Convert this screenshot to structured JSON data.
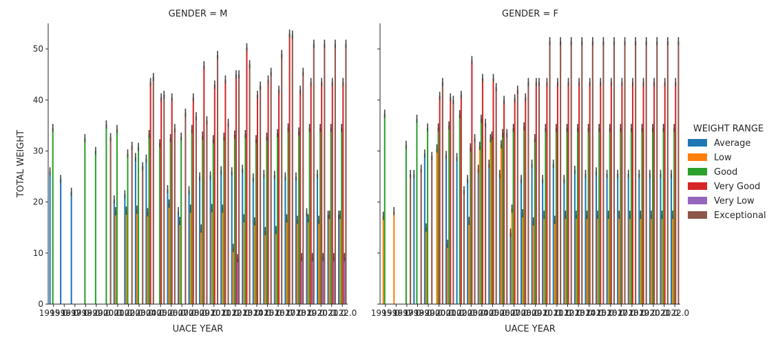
{
  "chart_data": {
    "type": "bar",
    "ylabel": "TOTAL WEIGHT",
    "xlabel": "UACE YEAR",
    "ylim": [
      0,
      55
    ],
    "yticks": [
      0,
      10,
      20,
      30,
      40,
      50
    ],
    "legend": {
      "title": "WEIGHT RANGE",
      "placement": "right",
      "entries": [
        {
          "name": "Average",
          "color": "#1f77b4"
        },
        {
          "name": "Low",
          "color": "#ff7f0e"
        },
        {
          "name": "Good",
          "color": "#2ca02c"
        },
        {
          "name": "Very Good",
          "color": "#d62728"
        },
        {
          "name": "Very Low",
          "color": "#9467bd"
        },
        {
          "name": "Exceptional",
          "color": "#8c564b"
        }
      ]
    },
    "categories": [
      "1995.0",
      "1996.0",
      "1997.0",
      "1998.0",
      "1999.0",
      "2000.0",
      "2001.0",
      "2002.0",
      "2003.0",
      "2004.0",
      "2005.0",
      "2006.0",
      "2007.0",
      "2008.0",
      "2009.0",
      "2010.0",
      "2011.0",
      "2012.0",
      "2013.0",
      "2014.0",
      "2015.0",
      "2016.0",
      "2017.0",
      "2018.0",
      "2019.0",
      "2020.0",
      "2021.0",
      "2022.0"
    ],
    "panels": [
      {
        "title": "GENDER = M",
        "series": [
          {
            "name": "Average",
            "values": [
              26,
              24.5,
              22,
              null,
              null,
              null,
              20.5,
              21.5,
              28.8,
              28.5,
              null,
              22.5,
              18.2,
              22.3,
              25,
              25.2,
              26.2,
              26,
              26.5,
              24.8,
              25.5,
              25.3,
              25,
              25,
              18,
              25.5,
              17.5,
              17.5
            ]
          },
          {
            "name": "Low",
            "values": [
              null,
              null,
              null,
              null,
              null,
              null,
              18.2,
              18.3,
              18.5,
              18,
              null,
              19.7,
              16.3,
              18.7,
              14.8,
              18.8,
              18.7,
              11,
              16.8,
              16.2,
              14.3,
              14.5,
              16.8,
              16.5,
              16.8,
              16.5,
              17.5,
              17.5
            ]
          },
          {
            "name": "Good",
            "values": [
              34.5,
              null,
              null,
              32.5,
              30,
              35.2,
              34.3,
              29.5,
              30.8,
              33.3,
              31.5,
              32.5,
              32.8,
              34.3,
              33,
              32.3,
              32.8,
              33.2,
              33.3,
              32.3,
              32.8,
              33.5,
              34.6,
              33.8,
              34.5,
              34.5,
              34.5,
              34.5
            ]
          },
          {
            "name": "Very Good",
            "values": [
              null,
              null,
              null,
              null,
              null,
              null,
              null,
              null,
              null,
              43.5,
              40.5,
              40.5,
              null,
              40.5,
              46.8,
              43,
              44,
              45,
              50.3,
              41,
              44,
              42,
              53,
              42,
              43.5,
              43.5,
              43.5,
              43.5
            ]
          },
          {
            "name": "Very Low",
            "values": [
              null,
              null,
              null,
              null,
              null,
              null,
              null,
              null,
              null,
              null,
              null,
              null,
              null,
              null,
              null,
              null,
              null,
              9,
              null,
              null,
              null,
              null,
              null,
              9.2,
              9.2,
              9.2,
              9.2,
              9.2
            ]
          },
          {
            "name": "Exceptional",
            "values": [
              null,
              null,
              null,
              null,
              null,
              32.7,
              null,
              31,
              27,
              44.5,
              41,
              34.5,
              37.5,
              36.8,
              36,
              48.8,
              35.5,
              45,
              47,
              42.8,
              45.5,
              49,
              52.8,
              45.5,
              51,
              51,
              51,
              51
            ]
          }
        ]
      },
      {
        "title": "GENDER = F",
        "series": [
          {
            "name": "Average",
            "values": [
              null,
              null,
              null,
              25.5,
              29.5,
              null,
              29.2,
              28.8,
              24.5,
              26.5,
              27.5,
              25.5,
              14,
              24.5,
              27.5,
              24.5,
              27.5,
              24.5,
              26.3,
              25.5,
              26,
              25.5,
              25.5,
              25.5,
              25.5,
              25.5,
              25.5,
              25.5
            ]
          },
          {
            "name": "Low",
            "values": [
              17.3,
              18.2,
              null,
              null,
              15,
              30.5,
              11.8,
              null,
              16.3,
              31,
              32.5,
              31.3,
              18.7,
              17.8,
              16.2,
              17.5,
              16.5,
              17.5,
              17.5,
              17.5,
              17.5,
              17.5,
              17.5,
              17.5,
              17.5,
              17.5,
              17.5,
              17.5
            ]
          },
          {
            "name": "Good",
            "values": [
              37.3,
              null,
              31.2,
              36.3,
              34.6,
              34.6,
              35,
              37.2,
              30.7,
              36.3,
              33,
              33.5,
              34.5,
              34.8,
              32.5,
              34.5,
              34.5,
              34.5,
              34.5,
              34.5,
              34.5,
              34.5,
              34.5,
              34.5,
              34.5,
              34.5,
              34.5,
              34.5
            ]
          },
          {
            "name": "Very Good",
            "values": [
              null,
              null,
              null,
              null,
              null,
              40.8,
              40.5,
              41,
              47.8,
              44.3,
              44.3,
              40,
              40.3,
              40.5,
              43.5,
              43.5,
              43.5,
              43.5,
              43.5,
              43.5,
              43.5,
              43.5,
              43.5,
              43.5,
              43.5,
              43.5,
              43.5,
              43.5
            ]
          },
          {
            "name": "Very Low",
            "values": [
              null,
              null,
              null,
              null,
              null,
              null,
              null,
              null,
              null,
              null,
              null,
              null,
              null,
              null,
              null,
              null,
              null,
              null,
              null,
              null,
              null,
              null,
              null,
              null,
              null,
              null,
              null,
              null
            ]
          },
          {
            "name": "Exceptional",
            "values": [
              null,
              null,
              25.5,
              26.5,
              29,
              43.5,
              40,
              22.3,
              32.5,
              35.5,
              42.5,
              33.5,
              42,
              43.5,
              43.5,
              51.5,
              51.5,
              51.5,
              51.5,
              51.5,
              51.5,
              51.5,
              51.5,
              51.5,
              51.5,
              51.5,
              51.5,
              51.5
            ]
          }
        ]
      }
    ]
  }
}
